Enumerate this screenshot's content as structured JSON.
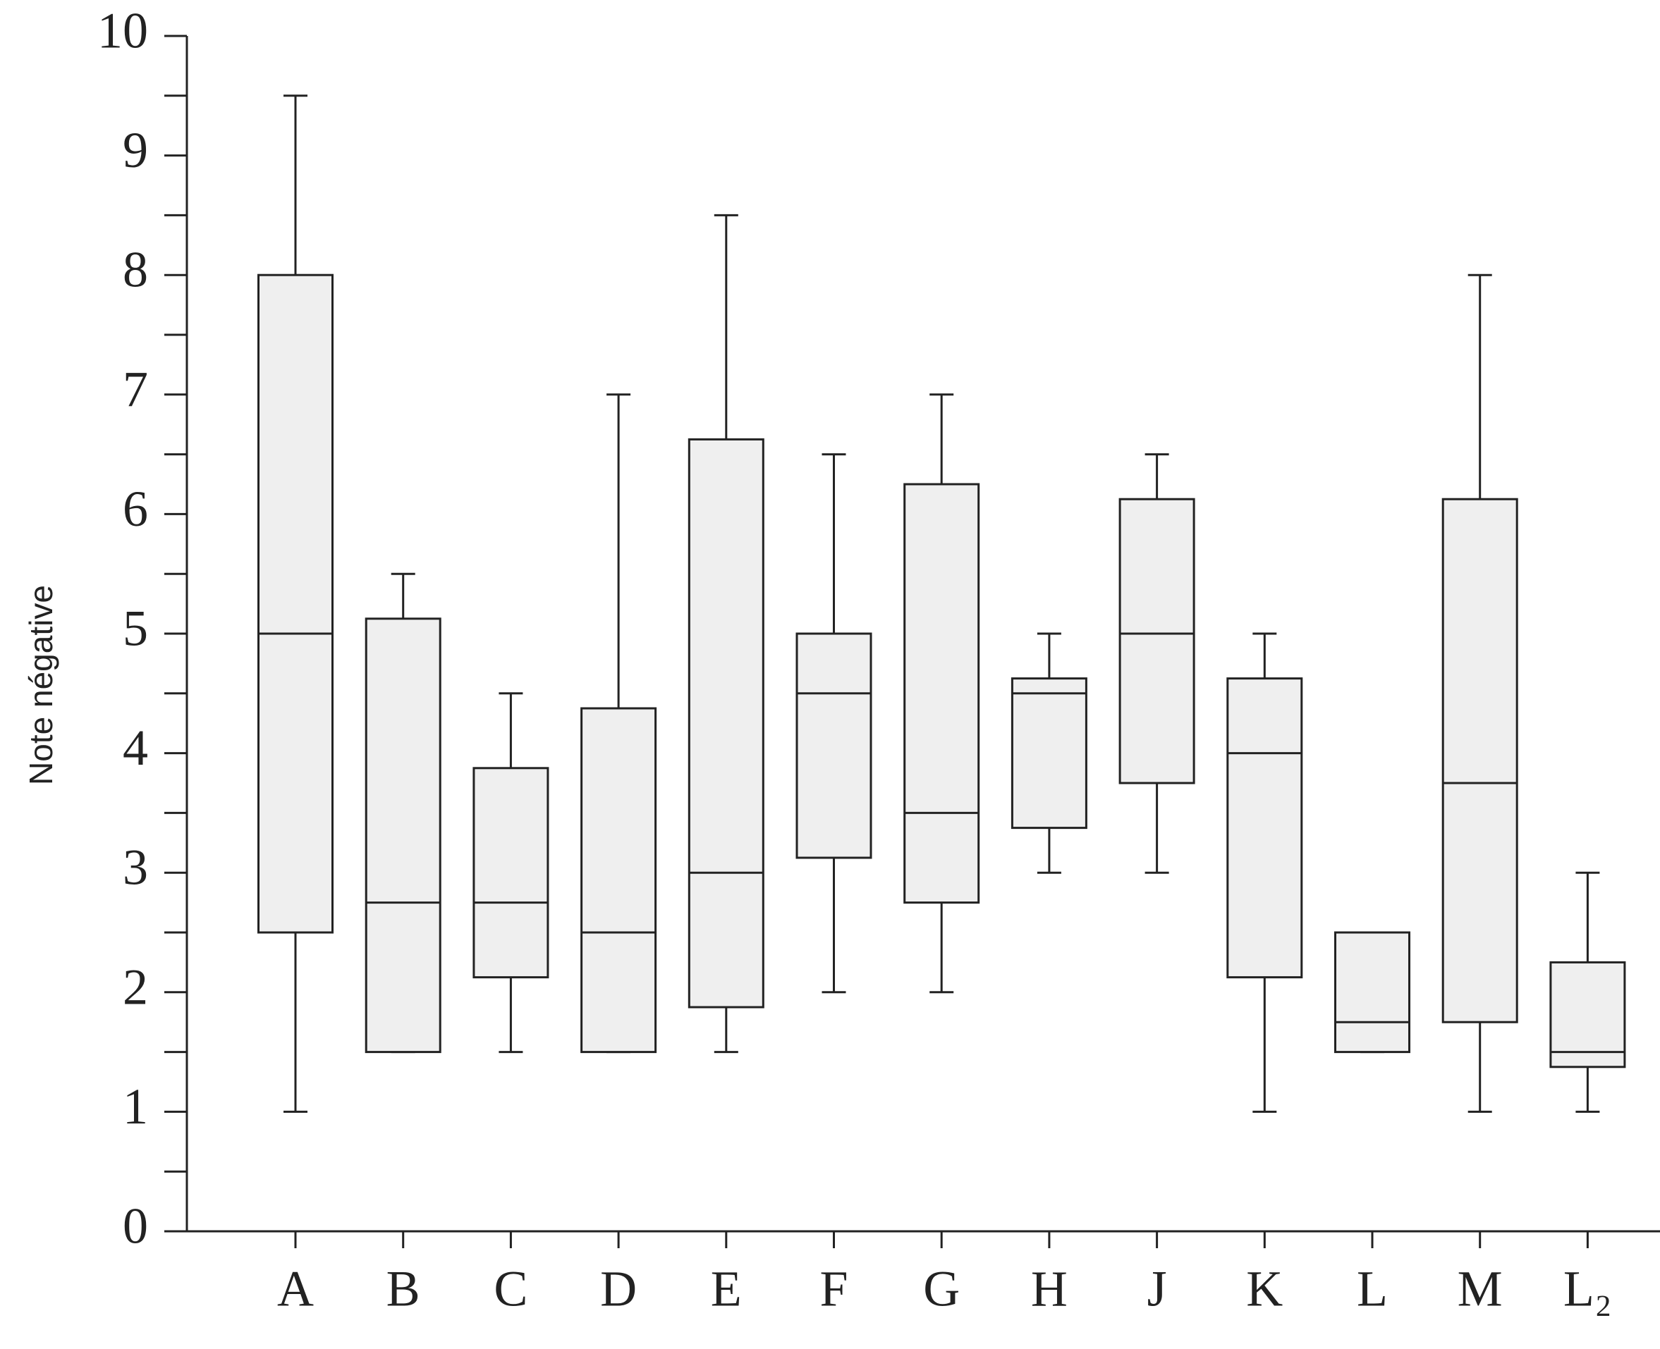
{
  "chart_data": {
    "type": "box",
    "y_label": "Note négative",
    "categories": [
      "A",
      "B",
      "C",
      "D",
      "E",
      "F",
      "G",
      "H",
      "J",
      "K",
      "L",
      "M",
      "L₂"
    ],
    "low": [
      1,
      1.5,
      1.5,
      1.5,
      1.5,
      2,
      2,
      3,
      3,
      1,
      1.5,
      1,
      1
    ],
    "q1": [
      2.5,
      1.5,
      2.125,
      1.5,
      1.875,
      3.125,
      2.75,
      3.375,
      3.75,
      2.125,
      1.5,
      1.75,
      1.375
    ],
    "median": [
      5,
      2.75,
      2.75,
      2.5,
      3,
      4.5,
      3.5,
      4.5,
      5,
      4,
      1.75,
      3.75,
      1.5
    ],
    "q3": [
      8,
      5.125,
      3.875,
      4.375,
      6.625,
      5,
      6.25,
      4.625,
      6.125,
      4.625,
      2.5,
      6.125,
      2.25
    ],
    "high": [
      9.5,
      5.5,
      4.5,
      7,
      8.5,
      6.5,
      7,
      5,
      6.5,
      5,
      2.5,
      8,
      3
    ],
    "color": "#efefef",
    "ylim": [
      0,
      10
    ],
    "yticks": [
      0,
      1,
      2,
      3,
      4,
      5,
      6,
      7,
      8,
      9,
      10
    ]
  }
}
